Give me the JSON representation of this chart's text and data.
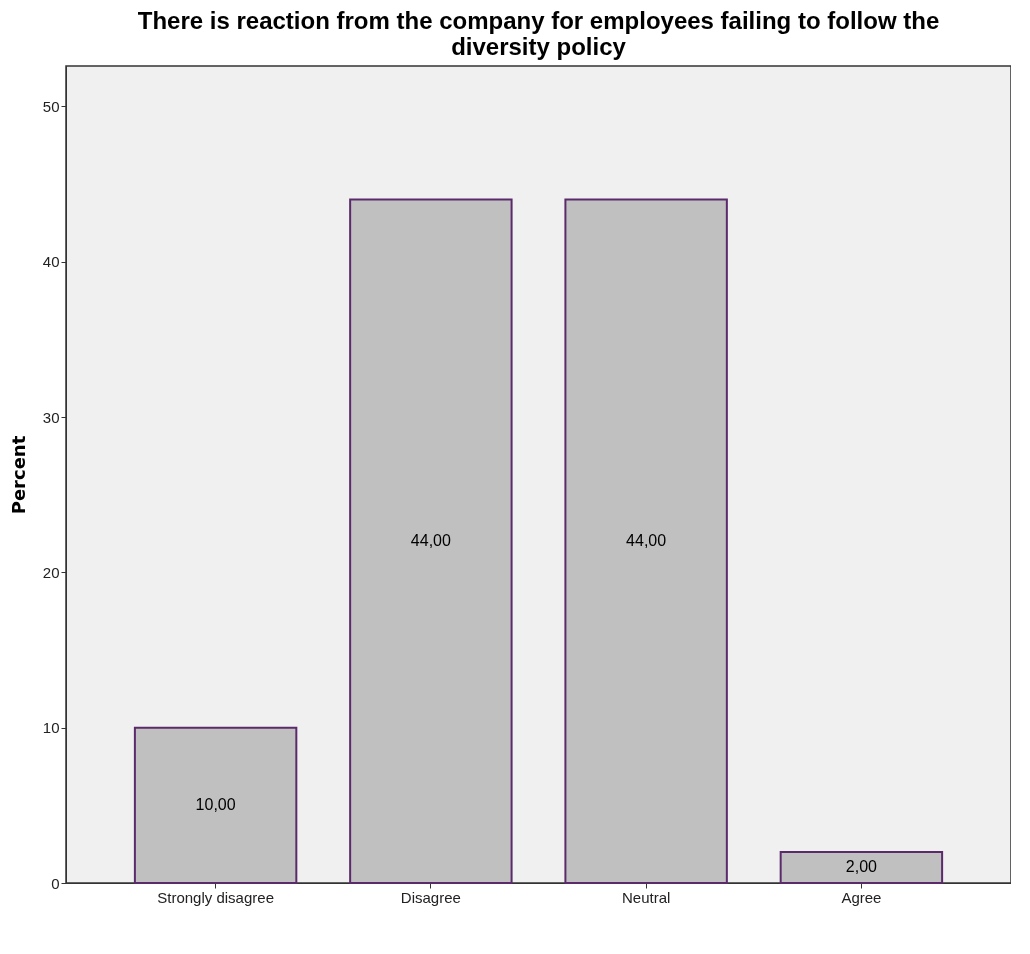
{
  "chart_data": {
    "type": "bar",
    "title": "There is reaction from the company for employees failing to follow the diversity policy",
    "ylabel": "Percent",
    "categories": [
      "Strongly disagree",
      "Disagree",
      "Neutral",
      "Agree"
    ],
    "values": [
      10,
      44,
      44,
      2
    ],
    "value_labels": [
      "10,00",
      "44,00",
      "44,00",
      "2,00"
    ],
    "color": "#c0c0c0",
    "ylim": [
      0,
      52.6
    ],
    "yticks": [
      0,
      10,
      20,
      30,
      40,
      50
    ],
    "grid": false
  }
}
